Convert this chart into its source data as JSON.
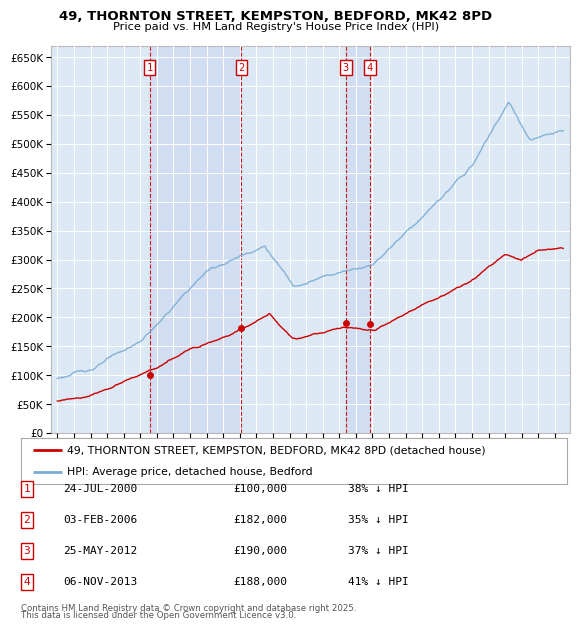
{
  "title": "49, THORNTON STREET, KEMPSTON, BEDFORD, MK42 8PD",
  "subtitle": "Price paid vs. HM Land Registry's House Price Index (HPI)",
  "ylim": [
    0,
    670000
  ],
  "yticks": [
    0,
    50000,
    100000,
    150000,
    200000,
    250000,
    300000,
    350000,
    400000,
    450000,
    500000,
    550000,
    600000,
    650000
  ],
  "ytick_labels": [
    "£0",
    "£50K",
    "£100K",
    "£150K",
    "£200K",
    "£250K",
    "£300K",
    "£350K",
    "£400K",
    "£450K",
    "£500K",
    "£550K",
    "£600K",
    "£650K"
  ],
  "background_color": "#ffffff",
  "plot_bg_color": "#dde8f5",
  "grid_color": "#ffffff",
  "sale_color": "#cc0000",
  "hpi_color": "#7aadd4",
  "shade_color": "#e8f0fa",
  "transactions": [
    {
      "num": 1,
      "date_num": 2000.56,
      "price": 100000,
      "label": "24-JUL-2000",
      "amount": "£100,000",
      "pct": "38% ↓ HPI"
    },
    {
      "num": 2,
      "date_num": 2006.09,
      "price": 182000,
      "label": "03-FEB-2006",
      "amount": "£182,000",
      "pct": "35% ↓ HPI"
    },
    {
      "num": 3,
      "date_num": 2012.4,
      "price": 190000,
      "label": "25-MAY-2012",
      "amount": "£190,000",
      "pct": "37% ↓ HPI"
    },
    {
      "num": 4,
      "date_num": 2013.85,
      "price": 188000,
      "label": "06-NOV-2013",
      "amount": "£188,000",
      "pct": "41% ↓ HPI"
    }
  ],
  "legend_line1": "49, THORNTON STREET, KEMPSTON, BEDFORD, MK42 8PD (detached house)",
  "legend_line2": "HPI: Average price, detached house, Bedford",
  "footer1": "Contains HM Land Registry data © Crown copyright and database right 2025.",
  "footer2": "This data is licensed under the Open Government Licence v3.0."
}
